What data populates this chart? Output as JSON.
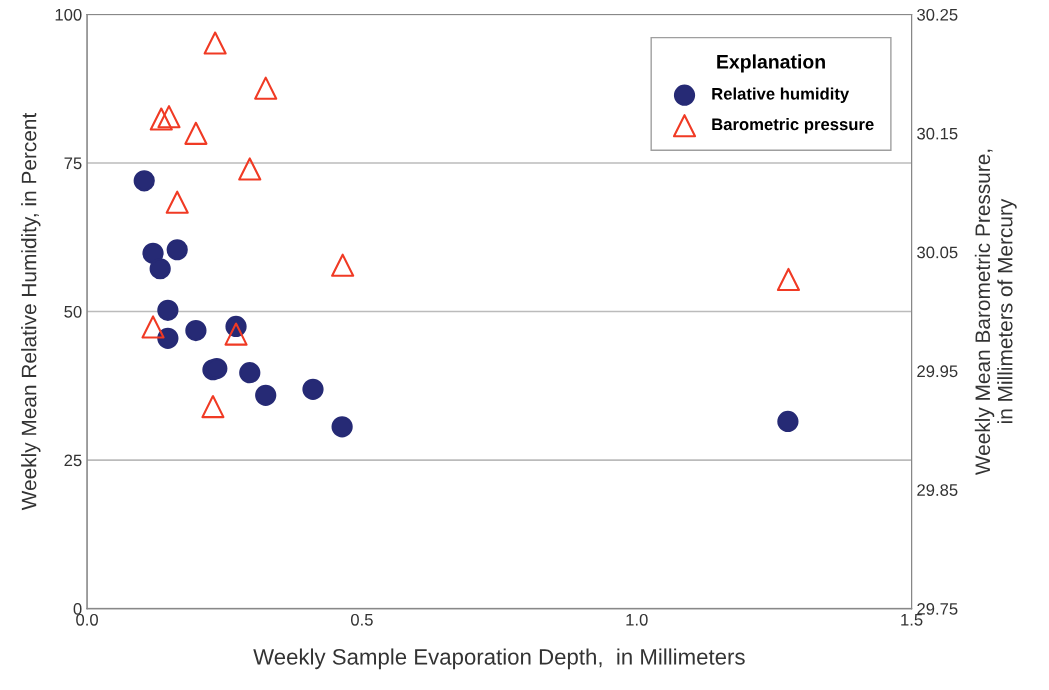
{
  "chart_data": {
    "type": "scatter",
    "xlabel": "Weekly Sample Evaporation Depth,  in Millimeters",
    "ylabel": "Weekly Mean Relative Humidity, in Percent",
    "y2label": "Weekly Mean Barometric Pressure,\nin Millimeters of Mercury",
    "legend_title": "Explanation",
    "series": [
      {
        "name": "Relative humidity",
        "color": "#262a75",
        "marker": "circle",
        "x": [
          0.104,
          0.12,
          0.133,
          0.164,
          0.147,
          0.147,
          0.198,
          0.271,
          0.229,
          0.236,
          0.296,
          0.325,
          0.411,
          0.464,
          1.275
        ],
        "values": [
          72.0,
          59.8,
          57.2,
          60.4,
          50.2,
          45.5,
          46.8,
          47.5,
          40.2,
          40.4,
          39.7,
          35.9,
          36.9,
          30.6,
          31.5
        ]
      },
      {
        "name": "Barometric pressure",
        "color": "#f03a24",
        "marker": "triangle",
        "axis": "y2",
        "x": [
          0.233,
          0.325,
          0.135,
          0.149,
          0.198,
          0.296,
          0.164,
          0.465,
          1.276,
          0.12,
          0.271,
          0.229
        ],
        "values": [
          30.226,
          30.188,
          30.162,
          30.164,
          30.15,
          30.12,
          30.092,
          30.039,
          30.027,
          29.987,
          29.981,
          29.92
        ]
      }
    ],
    "xlim": [
      0,
      1.5
    ],
    "xticks": [
      {
        "value": 0,
        "label": "0.0"
      },
      0.5,
      {
        "value": 1,
        "label": "1.0"
      },
      1.5
    ],
    "ylim": [
      0,
      100
    ],
    "yticks": [
      0,
      25,
      50,
      75,
      100
    ],
    "y2lim": [
      29.75,
      30.25
    ],
    "y2ticks": [
      29.75,
      29.85,
      29.95,
      30.05,
      30.15,
      30.25
    ],
    "grid": "y",
    "legend": "top right"
  }
}
